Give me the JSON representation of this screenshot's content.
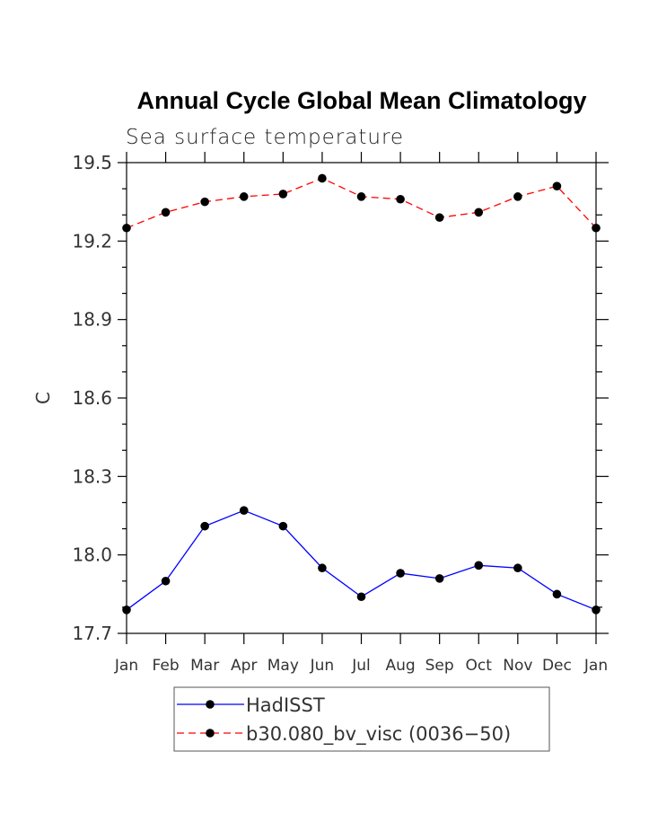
{
  "chart_data": {
    "type": "line",
    "title": "Annual Cycle Global Mean Climatology",
    "subtitle": "Sea surface temperature",
    "xlabel": "",
    "ylabel": "C",
    "categories": [
      "Jan",
      "Feb",
      "Mar",
      "Apr",
      "May",
      "Jun",
      "Jul",
      "Aug",
      "Sep",
      "Oct",
      "Nov",
      "Dec",
      "Jan"
    ],
    "ylim": [
      17.7,
      19.5
    ],
    "yticks": [
      "17.7",
      "18.0",
      "18.3",
      "18.6",
      "18.9",
      "19.2",
      "19.5"
    ],
    "grid": false,
    "legend_position": "bottom-center",
    "series": [
      {
        "name": "HadISST",
        "color": "#0000ff",
        "style": "solid",
        "values": [
          17.79,
          17.9,
          18.11,
          18.17,
          18.11,
          17.95,
          17.84,
          17.93,
          17.91,
          17.96,
          17.95,
          17.85,
          17.79
        ]
      },
      {
        "name": "b30.080_bv_visc (0036−50)",
        "color": "#ff0000",
        "style": "dashed",
        "values": [
          19.25,
          19.31,
          19.35,
          19.37,
          19.38,
          19.44,
          19.37,
          19.36,
          19.29,
          19.31,
          19.37,
          19.41,
          19.25
        ]
      }
    ]
  }
}
